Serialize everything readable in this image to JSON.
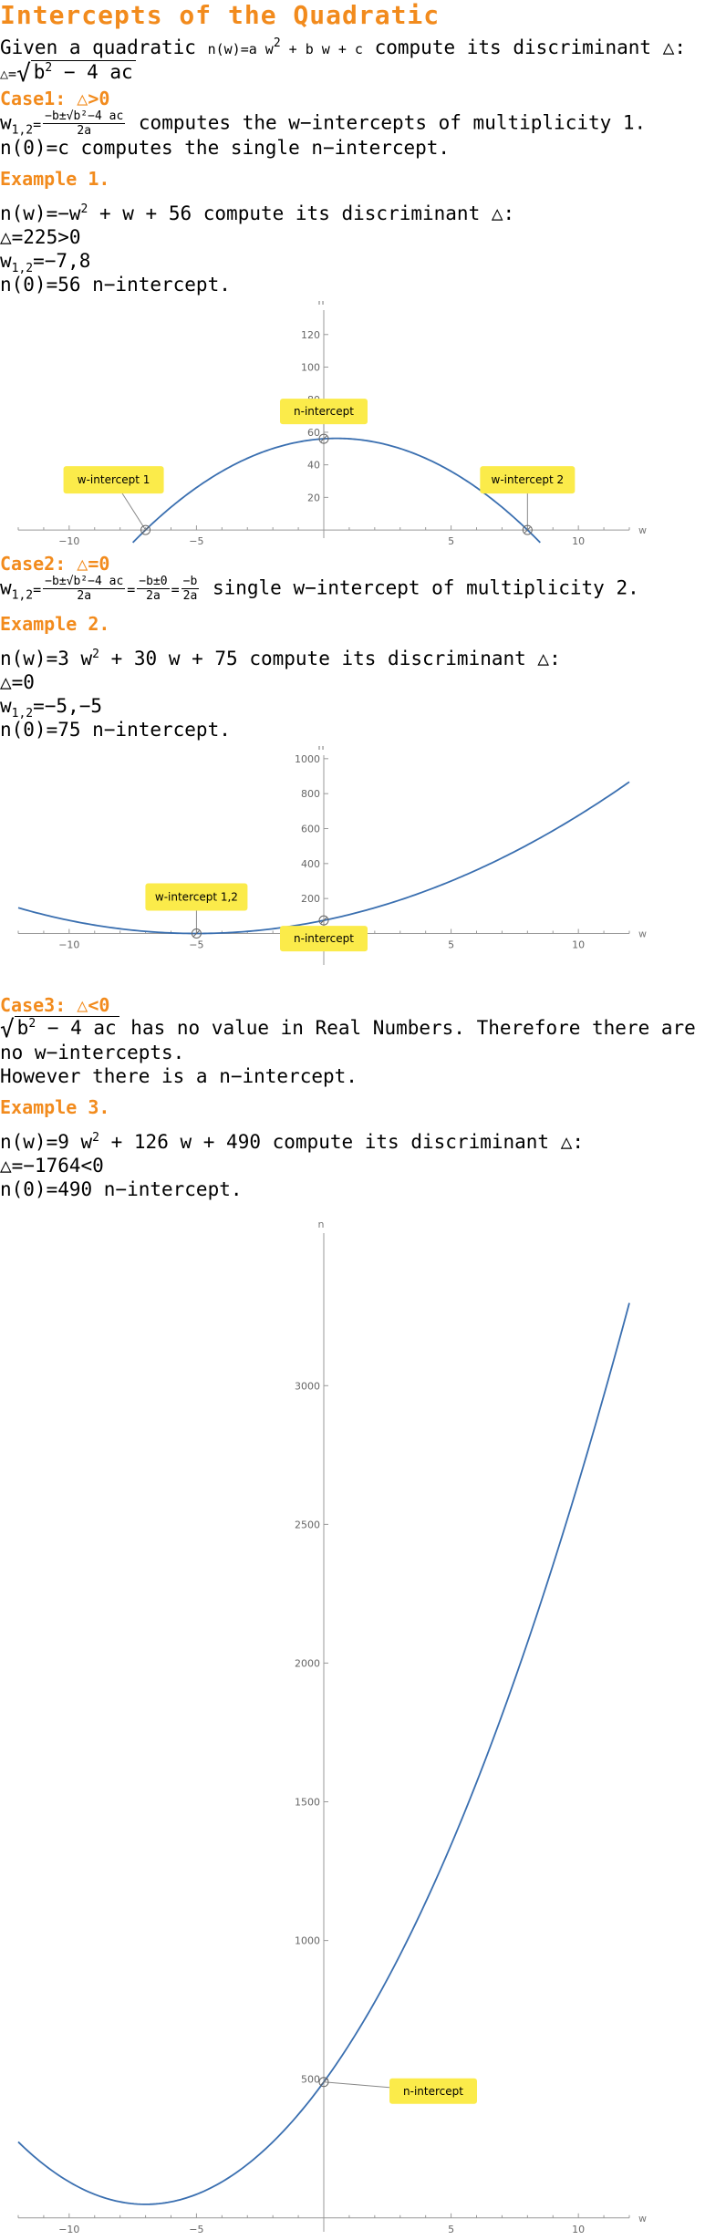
{
  "title": "Intercepts of the Quadratic",
  "intro": {
    "line1_pre": "Given a quadratic ",
    "line1_expr_n": "n",
    "line1_expr_rest_a": "(w)=a w",
    "line1_sup": "2",
    "line1_expr_rest_b": " + b w + c",
    "line1_post": " compute its discriminant △:",
    "disc_lhs": "△=",
    "disc_rad": "b",
    "disc_sup": "2",
    "disc_rest": " − 4 ac"
  },
  "case1": {
    "heading": "Case1: △>0",
    "formula_lhs": "w",
    "formula_sub": "1,2",
    "formula_eq": "=",
    "formula_num": "−b±√b²−4 ac",
    "formula_den": "2a",
    "formula_text": " computes the w−intercepts of multiplicity 1.",
    "n_text": "n(0)=c computes the single n−intercept."
  },
  "example1": {
    "heading": "Example 1.",
    "eq_pre": "n(w)=−w",
    "eq_sup": "2",
    "eq_post": " + w + 56 compute its discriminant △:",
    "disc": "△=225>0",
    "roots_lhs": "w",
    "roots_sub": "1,2",
    "roots_rhs": "=−7,8",
    "n0": "n(0)=56 n−intercept."
  },
  "case2": {
    "heading": "Case2: △=0",
    "formula_lhs": "w",
    "formula_sub": "1,2",
    "f1_num": "−b±√b²−4 ac",
    "f1_den": "2a",
    "f2_num": "−b±0",
    "f2_den": "2a",
    "f3_num": "−b",
    "f3_den": "2a",
    "formula_text": " single w−intercept of multiplicity 2."
  },
  "example2": {
    "heading": "Example 2.",
    "eq_pre": "n(w)=3 w",
    "eq_sup": "2",
    "eq_post": " + 30 w + 75 compute its discriminant △:",
    "disc": "△=0",
    "roots_lhs": "w",
    "roots_sub": "1,2",
    "roots_rhs": "=−5,−5",
    "n0": "n(0)=75 n−intercept."
  },
  "case3": {
    "heading": "Case3: △<0",
    "rad": "b",
    "rad_sup": "2",
    "rad_rest": " − 4 ac",
    "line1": " has no value in Real Numbers. Therefore there are",
    "line2": "no w−intercepts.",
    "line3": "However there is a n−intercept."
  },
  "example3": {
    "heading": "Example 3.",
    "eq_pre": "n(w)=9 w",
    "eq_sup": "2",
    "eq_post": " + 126 w + 490 compute its discriminant △:",
    "disc": "△=−1764<0",
    "n0": "n(0)=490 n−intercept."
  },
  "colors": {
    "accent": "#f28b1d",
    "curve": "#3a6fb0",
    "callout": "#fbeb4a"
  },
  "chart_data": [
    {
      "type": "line",
      "function": "n(w) = -w^2 + w + 56",
      "xlabel": "w",
      "ylabel": "n",
      "xlim": [
        -12,
        12
      ],
      "ylim": [
        -5,
        135
      ],
      "xticks": [
        -10,
        -5,
        5,
        10
      ],
      "yticks": [
        20,
        40,
        60,
        80,
        100,
        120
      ],
      "x_range_plotted": [
        -7.5,
        8.5
      ],
      "annotations": [
        {
          "label": "w-intercept 1",
          "x": -7,
          "y": 0
        },
        {
          "label": "n-intercept",
          "x": 0,
          "y": 56
        },
        {
          "label": "w-intercept 2",
          "x": 8,
          "y": 0
        }
      ]
    },
    {
      "type": "line",
      "function": "n(w) = 3w^2 + 30w + 75",
      "xlabel": "w",
      "ylabel": "n",
      "xlim": [
        -12,
        12
      ],
      "ylim": [
        -180,
        1020
      ],
      "xticks": [
        -10,
        -5,
        5,
        10
      ],
      "yticks": [
        200,
        400,
        600,
        800,
        1000
      ],
      "x_range_plotted": [
        -12,
        12
      ],
      "annotations": [
        {
          "label": "w-intercept 1,2",
          "x": -5,
          "y": 0
        },
        {
          "label": "n-intercept",
          "x": 0,
          "y": 75
        }
      ]
    },
    {
      "type": "line",
      "function": "n(w) = 9w^2 + 126w + 490",
      "xlabel": "w",
      "ylabel": "n",
      "xlim": [
        -12,
        12
      ],
      "ylim": [
        -50,
        3550
      ],
      "xticks": [
        -10,
        -5,
        5,
        10
      ],
      "yticks": [
        500,
        1000,
        1500,
        2000,
        2500,
        3000
      ],
      "x_range_plotted": [
        -12,
        12
      ],
      "annotations": [
        {
          "label": "n-intercept",
          "x": 0,
          "y": 490
        }
      ]
    }
  ]
}
